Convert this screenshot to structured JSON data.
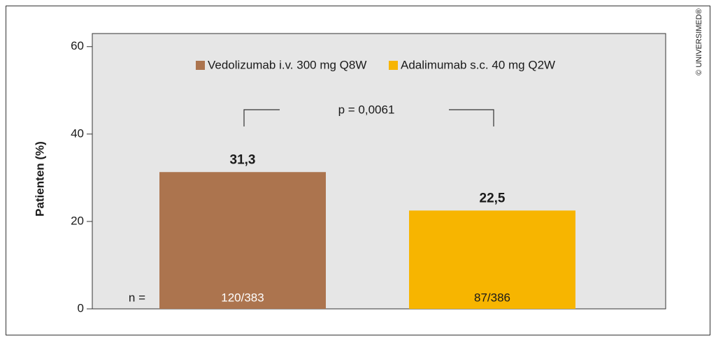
{
  "chart_data": {
    "type": "bar",
    "y_label": "Patienten (%)",
    "ylim": [
      0,
      63
    ],
    "yticks": [
      0,
      20,
      40,
      60
    ],
    "series": [
      {
        "name": "Vedolizumab i.v. 300 mg Q8W",
        "color": "#ac744e",
        "values": [
          31.3
        ],
        "value_labels": [
          "31,3"
        ],
        "n": "120/383"
      },
      {
        "name": "Adalimumab s.c. 40 mg Q2W",
        "color": "#f7b500",
        "values": [
          22.5
        ],
        "value_labels": [
          "22,5"
        ],
        "n": "87/386"
      }
    ],
    "n_label": "n =",
    "annotation": "p = 0,0061",
    "copyright": "© UNIVERSIMED®"
  }
}
